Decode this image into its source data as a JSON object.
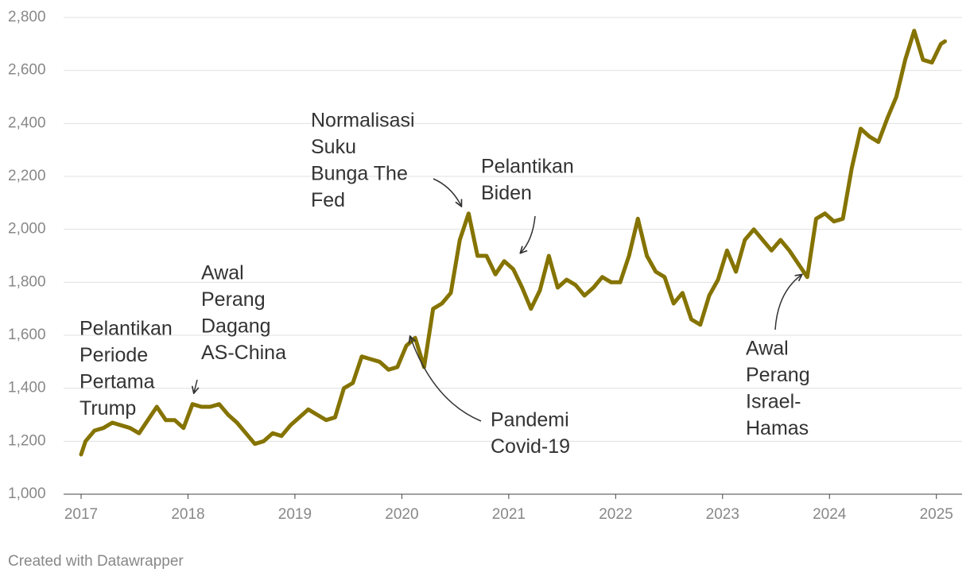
{
  "chart_data": {
    "type": "line",
    "x": [
      2017.0,
      2017.042,
      2017.125,
      2017.208,
      2017.292,
      2017.375,
      2017.458,
      2017.542,
      2017.625,
      2017.708,
      2017.792,
      2017.875,
      2017.958,
      2018.042,
      2018.125,
      2018.208,
      2018.292,
      2018.375,
      2018.458,
      2018.542,
      2018.625,
      2018.708,
      2018.792,
      2018.875,
      2018.958,
      2019.042,
      2019.125,
      2019.208,
      2019.292,
      2019.375,
      2019.458,
      2019.542,
      2019.625,
      2019.708,
      2019.792,
      2019.875,
      2019.958,
      2020.042,
      2020.125,
      2020.208,
      2020.292,
      2020.375,
      2020.458,
      2020.542,
      2020.625,
      2020.708,
      2020.792,
      2020.875,
      2020.958,
      2021.042,
      2021.125,
      2021.208,
      2021.292,
      2021.375,
      2021.458,
      2021.542,
      2021.625,
      2021.708,
      2021.792,
      2021.875,
      2021.958,
      2022.042,
      2022.125,
      2022.208,
      2022.292,
      2022.375,
      2022.458,
      2022.542,
      2022.625,
      2022.708,
      2022.792,
      2022.875,
      2022.958,
      2023.042,
      2023.125,
      2023.208,
      2023.292,
      2023.375,
      2023.458,
      2023.542,
      2023.625,
      2023.708,
      2023.792,
      2023.875,
      2023.958,
      2024.042,
      2024.125,
      2024.208,
      2024.292,
      2024.375,
      2024.458,
      2024.542,
      2024.625,
      2024.708,
      2024.792,
      2024.875,
      2024.958,
      2025.042,
      2025.08
    ],
    "values": [
      1150,
      1200,
      1240,
      1250,
      1270,
      1260,
      1250,
      1230,
      1280,
      1330,
      1280,
      1280,
      1250,
      1340,
      1330,
      1330,
      1340,
      1300,
      1270,
      1230,
      1190,
      1200,
      1230,
      1220,
      1260,
      1290,
      1320,
      1300,
      1280,
      1290,
      1400,
      1420,
      1520,
      1510,
      1500,
      1470,
      1480,
      1560,
      1590,
      1480,
      1700,
      1720,
      1760,
      1960,
      2060,
      1900,
      1900,
      1830,
      1880,
      1850,
      1780,
      1700,
      1770,
      1900,
      1780,
      1810,
      1790,
      1750,
      1780,
      1820,
      1800,
      1800,
      1900,
      2040,
      1900,
      1840,
      1820,
      1720,
      1760,
      1660,
      1640,
      1750,
      1810,
      1920,
      1840,
      1960,
      2000,
      1960,
      1920,
      1960,
      1920,
      1870,
      1820,
      2040,
      2060,
      2030,
      2040,
      2230,
      2380,
      2350,
      2330,
      2420,
      2500,
      2640,
      2750,
      2640,
      2630,
      2700,
      2710
    ],
    "color": "#857300",
    "xlim": [
      2017,
      2025.24
    ],
    "xticks": [
      2017,
      2018,
      2019,
      2020,
      2021,
      2022,
      2023,
      2024,
      2025
    ],
    "ylim": [
      1000,
      2800
    ],
    "yticks": [
      {
        "value": 1000,
        "label": "1,000"
      },
      {
        "value": 1200,
        "label": "1,200"
      },
      {
        "value": 1400,
        "label": "1,400"
      },
      {
        "value": 1600,
        "label": "1,600"
      },
      {
        "value": 1800,
        "label": "1,800"
      },
      {
        "value": 2000,
        "label": "2,000"
      },
      {
        "value": 2200,
        "label": "2,200"
      },
      {
        "value": 2400,
        "label": "2,400"
      },
      {
        "value": 2600,
        "label": "2,600"
      },
      {
        "value": 2800,
        "label": "2,800"
      }
    ],
    "grid": true,
    "annotations": [
      {
        "lines": [
          "Pelantikan",
          "Periode",
          "Pertama",
          "Trump"
        ]
      },
      {
        "lines": [
          "Awal",
          "Perang",
          "Dagang",
          "AS-China"
        ]
      },
      {
        "lines": [
          "Normalisasi",
          "Suku",
          "Bunga The",
          "Fed"
        ]
      },
      {
        "lines": [
          "Pelantikan",
          "Biden"
        ]
      },
      {
        "lines": [
          "Pandemi",
          "Covid-19"
        ]
      },
      {
        "lines": [
          "Awal",
          "Perang",
          "Israel-",
          "Hamas"
        ]
      }
    ]
  },
  "footer": "Created with Datawrapper"
}
